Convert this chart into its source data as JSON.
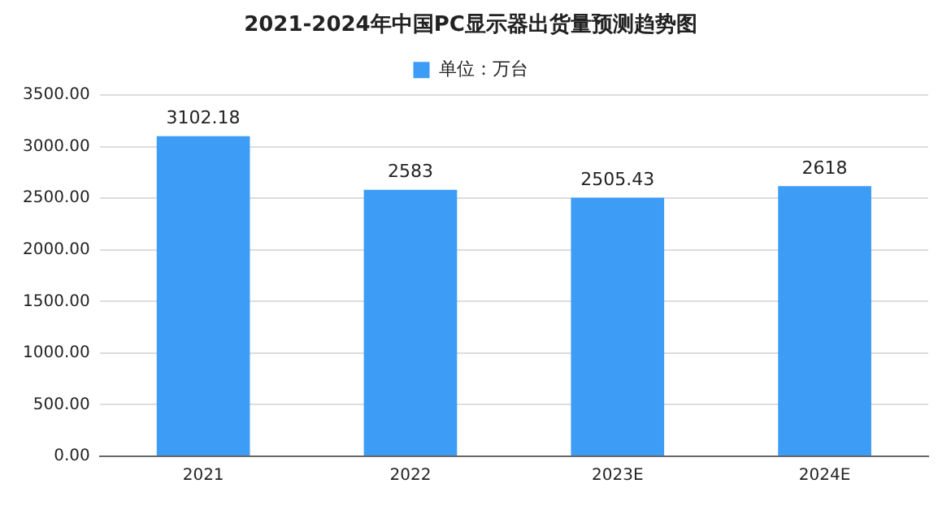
{
  "chart_data": {
    "type": "bar",
    "title": "2021-2024年中国PC显示器出货量预测趋势图",
    "categories": [
      "2021",
      "2022",
      "2023E",
      "2024E"
    ],
    "series": [
      {
        "name": "单位：万台",
        "color": "#3d9cf5",
        "values": [
          3102.18,
          2583,
          2505.43,
          2618
        ]
      }
    ],
    "ylim": [
      0,
      3500
    ],
    "yticks": [
      {
        "value": 0,
        "label": "0.00"
      },
      {
        "value": 500,
        "label": "500.00"
      },
      {
        "value": 1000,
        "label": "1000.00"
      },
      {
        "value": 1500,
        "label": "1500.00"
      },
      {
        "value": 2000,
        "label": "2000.00"
      },
      {
        "value": 2500,
        "label": "2500.00"
      },
      {
        "value": 3000,
        "label": "3000.00"
      },
      {
        "value": 3500,
        "label": "3500.00"
      }
    ],
    "grid": "y",
    "legend": "top",
    "data_labels": true
  }
}
